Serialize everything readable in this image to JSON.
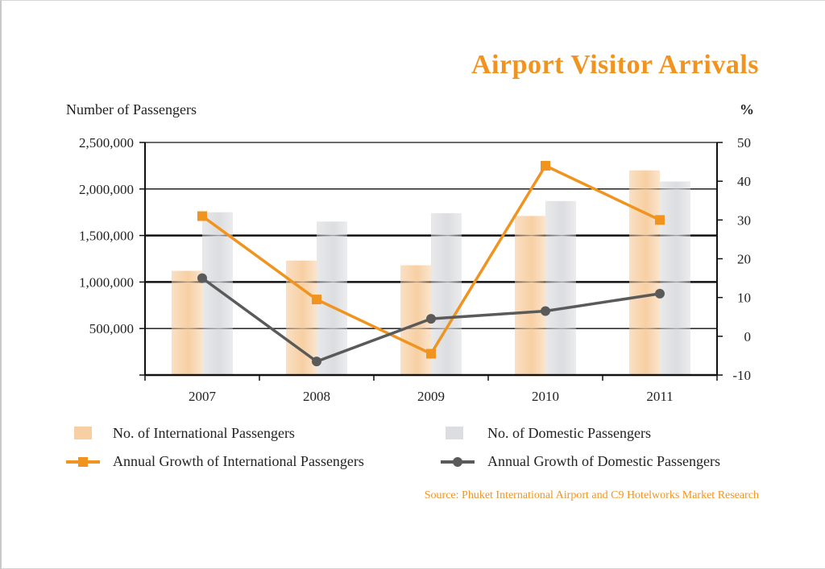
{
  "chart_data": {
    "type": "bar",
    "title": "Airport Visitor Arrivals",
    "ylabel": "Number of Passengers",
    "y2label": "%",
    "categories": [
      "2007",
      "2008",
      "2009",
      "2010",
      "2011"
    ],
    "ylim": [
      0,
      2500000
    ],
    "yticks": [
      500000,
      1000000,
      1500000,
      2000000,
      2500000
    ],
    "ytick_labels": [
      "500,000",
      "1,000,000",
      "1,500,000",
      "2,000,000",
      "2,500,000"
    ],
    "y2lim": [
      -10,
      50
    ],
    "y2ticks": [
      -10,
      0,
      10,
      20,
      30,
      40,
      50
    ],
    "y2tick_labels": [
      "-10",
      "0",
      "10",
      "20",
      "30",
      "40",
      "50"
    ],
    "grid": true,
    "legend_position": "bottom",
    "series": [
      {
        "name": "No. of International Passengers",
        "kind": "bar",
        "axis": "left",
        "color": "#f7cfa3",
        "values": [
          1120000,
          1230000,
          1180000,
          1710000,
          2200000
        ]
      },
      {
        "name": "No. of Domestic Passengers",
        "kind": "bar",
        "axis": "left",
        "color": "#dcdde0",
        "values": [
          1750000,
          1650000,
          1740000,
          1870000,
          2080000
        ]
      },
      {
        "name": "Annual Growth of International Passengers",
        "kind": "line",
        "marker": "square",
        "axis": "right",
        "color": "#f0941f",
        "values": [
          31,
          9.5,
          -4.5,
          44,
          30
        ]
      },
      {
        "name": "Annual Growth of Domestic Passengers",
        "kind": "line",
        "marker": "circle",
        "axis": "right",
        "color": "#5a5a5a",
        "values": [
          15,
          -6.5,
          4.5,
          6.5,
          11
        ]
      }
    ],
    "source": "Source: Phuket International Airport and C9 Hotelworks Market Research"
  }
}
